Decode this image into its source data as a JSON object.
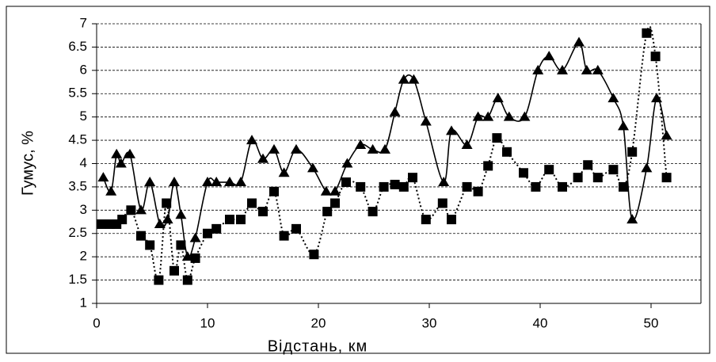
{
  "chart_data": {
    "type": "line",
    "xlabel": "Відстань, км",
    "ylabel": "Гумус, %",
    "xlim": [
      0,
      54.5
    ],
    "xticks": [
      0,
      10,
      20,
      30,
      40,
      50
    ],
    "ylim": [
      1,
      7
    ],
    "yticks": [
      1,
      1.5,
      2,
      2.5,
      3,
      3.5,
      4,
      4.5,
      5,
      5.5,
      6,
      6.5,
      7
    ],
    "grid": true,
    "series": [
      {
        "color": "#000000",
        "marker": "triangle",
        "linestyle": "solid",
        "smooth": true,
        "x": [
          0.6,
          1.3,
          1.8,
          2.2,
          3.0,
          4.0,
          4.8,
          5.7,
          6.4,
          7.0,
          7.6,
          8.2,
          8.9,
          10.0,
          10.8,
          12.0,
          13.0,
          14.0,
          15.0,
          16.0,
          16.9,
          18.0,
          19.5,
          20.7,
          21.5,
          22.6,
          23.8,
          24.9,
          26.0,
          26.9,
          27.7,
          28.6,
          29.7,
          31.3,
          32.0,
          33.4,
          34.4,
          35.3,
          36.2,
          37.2,
          38.6,
          39.8,
          40.8,
          42.0,
          43.5,
          44.2,
          45.2,
          46.6,
          47.5,
          48.3,
          49.6,
          50.5,
          51.4
        ],
        "values": [
          3.7,
          3.4,
          4.2,
          4.0,
          4.2,
          3.0,
          3.6,
          2.7,
          2.8,
          3.6,
          2.9,
          2.0,
          2.4,
          3.6,
          3.6,
          3.6,
          3.6,
          4.5,
          4.1,
          4.3,
          3.8,
          4.3,
          3.9,
          3.4,
          3.4,
          4.0,
          4.4,
          4.3,
          4.3,
          5.1,
          5.8,
          5.8,
          4.9,
          3.6,
          4.7,
          4.4,
          5.0,
          5.0,
          5.4,
          5.0,
          5.0,
          6.0,
          6.3,
          6.0,
          6.6,
          6.0,
          6.0,
          5.4,
          4.8,
          2.8,
          3.9,
          5.4,
          4.6
        ]
      },
      {
        "color": "#000000",
        "marker": "square",
        "linestyle": "dotted",
        "smooth": true,
        "x": [
          0.4,
          1.2,
          1.8,
          2.3,
          3.1,
          4.0,
          4.8,
          5.6,
          6.3,
          7.0,
          7.6,
          8.2,
          8.9,
          10.0,
          10.8,
          12.0,
          13.0,
          14.0,
          15.0,
          16.0,
          16.9,
          18.0,
          19.6,
          20.8,
          21.5,
          22.5,
          23.8,
          24.9,
          25.9,
          26.9,
          27.7,
          28.5,
          29.7,
          31.2,
          32.0,
          33.4,
          34.4,
          35.3,
          36.1,
          37.0,
          38.5,
          39.6,
          40.8,
          42.0,
          43.4,
          44.3,
          45.2,
          46.6,
          47.5,
          48.3,
          49.6,
          50.4,
          51.4
        ],
        "values": [
          2.7,
          2.7,
          2.7,
          2.8,
          3.0,
          2.45,
          2.25,
          1.5,
          3.15,
          1.7,
          2.25,
          1.5,
          1.97,
          2.5,
          2.6,
          2.8,
          2.8,
          3.15,
          2.97,
          3.4,
          2.45,
          2.6,
          2.05,
          2.97,
          3.15,
          3.6,
          3.5,
          2.97,
          3.5,
          3.55,
          3.5,
          3.7,
          2.8,
          3.15,
          2.8,
          3.5,
          3.4,
          3.95,
          4.55,
          4.25,
          3.8,
          3.5,
          3.87,
          3.5,
          3.7,
          3.97,
          3.7,
          3.87,
          3.5,
          4.25,
          6.8,
          6.3,
          3.7
        ]
      }
    ]
  }
}
